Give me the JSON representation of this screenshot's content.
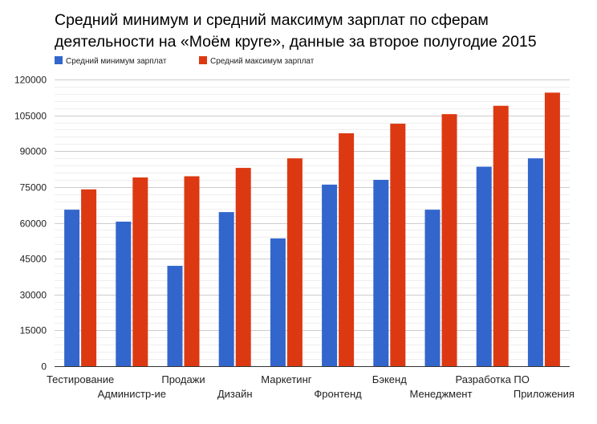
{
  "chart_data": {
    "type": "bar",
    "title": "Средний минимум и средний максимум зарплат по сферам деятельности на «Моём круге», данные за второе полугодие 2015",
    "xlabel": "",
    "ylabel": "",
    "ylim": [
      0,
      120000
    ],
    "yticks": [
      "0",
      "15000",
      "30000",
      "45000",
      "60000",
      "75000",
      "90000",
      "105000",
      "120000"
    ],
    "categories": [
      "Тестирование",
      "Администр-ие",
      "Продажи",
      "Дизайн",
      "Маркетинг",
      "Фронтенд",
      "Бэкенд",
      "Менеджмент",
      "Разработка ПО",
      "Приложения"
    ],
    "series": [
      {
        "name": "Средний минимум зарплат",
        "color": "#3366cc",
        "values": [
          65500,
          60500,
          42000,
          64500,
          53500,
          76000,
          78000,
          65500,
          83500,
          87000
        ]
      },
      {
        "name": "Средний максимум зарплат",
        "color": "#dc3912",
        "values": [
          74000,
          79000,
          79500,
          83000,
          87000,
          97500,
          101500,
          105500,
          109000,
          114500
        ]
      }
    ],
    "legend_position": "top-left",
    "grid": true
  }
}
